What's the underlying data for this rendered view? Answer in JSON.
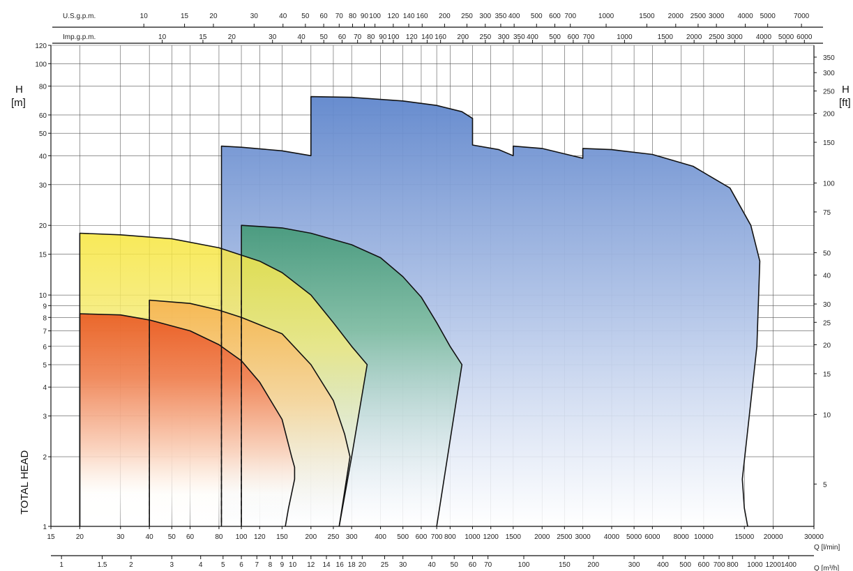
{
  "chart_data": {
    "type": "area",
    "title": "",
    "x_scale": "log",
    "y_scale": "log",
    "xlim": [
      15,
      30000
    ],
    "ylim": [
      1,
      120
    ],
    "grid": true,
    "labels": {
      "h_left_1": "H",
      "h_left_2": "[m]",
      "h_right_1": "H",
      "h_right_2": "[ft]",
      "total_head": "TOTAL HEAD",
      "q_lmin": "Q [l/min]",
      "q_m3h": "Q [m³/h]",
      "usgpm": "U.S.g.p.m.",
      "impgpm": "Imp.g.p.m."
    },
    "x_ticks_lmin": [
      "15",
      "20",
      "30",
      "40",
      "50",
      "60",
      "80",
      "100",
      "120",
      "150",
      "200",
      "250",
      "300",
      "400",
      "500",
      "600",
      "700",
      "800",
      "1000",
      "1200",
      "1500",
      "2000",
      "2500",
      "3000",
      "4000",
      "5000",
      "6000",
      "8000",
      "10000",
      "15000",
      "20000",
      "30000"
    ],
    "x_ticks_m3h": [
      "1",
      "1.5",
      "2",
      "3",
      "4",
      "5",
      "6",
      "7",
      "8",
      "9",
      "10",
      "12",
      "14",
      "16",
      "18",
      "20",
      "25",
      "30",
      "40",
      "50",
      "60",
      "70",
      "100",
      "150",
      "200",
      "300",
      "400",
      "500",
      "600",
      "700",
      "800",
      "1000",
      "1200",
      "1400"
    ],
    "x_ticks_usgpm": [
      "10",
      "15",
      "20",
      "30",
      "40",
      "50",
      "60",
      "70",
      "80",
      "90",
      "100",
      "120",
      "140",
      "160",
      "200",
      "250",
      "300",
      "350",
      "400",
      "500",
      "600",
      "700",
      "1000",
      "1500",
      "2000",
      "2500",
      "3000",
      "4000",
      "5000",
      "7000"
    ],
    "x_ticks_impgpm": [
      "10",
      "15",
      "20",
      "30",
      "40",
      "50",
      "60",
      "70",
      "80",
      "90",
      "100",
      "120",
      "140",
      "160",
      "200",
      "250",
      "300",
      "350",
      "400",
      "500",
      "600",
      "700",
      "1000",
      "1500",
      "2000",
      "2500",
      "3000",
      "4000",
      "5000",
      "6000"
    ],
    "y_ticks_m": [
      "1",
      "2",
      "3",
      "4",
      "5",
      "6",
      "7",
      "8",
      "9",
      "10",
      "15",
      "20",
      "30",
      "40",
      "50",
      "60",
      "80",
      "100",
      "120"
    ],
    "y_ticks_ft": [
      "5",
      "10",
      "15",
      "20",
      "25",
      "30",
      "40",
      "50",
      "75",
      "100",
      "150",
      "200",
      "250",
      "300",
      "350"
    ],
    "series": [
      {
        "color": "#3f6fc0",
        "points": [
          [
            82,
            1
          ],
          [
            82,
            44
          ],
          [
            100,
            43.5
          ],
          [
            150,
            42
          ],
          [
            200,
            40
          ],
          [
            200,
            72
          ],
          [
            300,
            71.5
          ],
          [
            500,
            69
          ],
          [
            700,
            66
          ],
          [
            900,
            62
          ],
          [
            1000,
            58
          ],
          [
            1000,
            44.5
          ],
          [
            1300,
            42.5
          ],
          [
            1500,
            40
          ],
          [
            1500,
            44
          ],
          [
            2000,
            43
          ],
          [
            3000,
            39
          ],
          [
            3000,
            43
          ],
          [
            4000,
            42.5
          ],
          [
            6000,
            40.5
          ],
          [
            9000,
            36
          ],
          [
            13000,
            29
          ],
          [
            16000,
            20
          ],
          [
            17500,
            14
          ],
          [
            17000,
            6
          ],
          [
            15500,
            2.6
          ],
          [
            14700,
            1.6
          ],
          [
            15000,
            1.2
          ],
          [
            15500,
            1
          ]
        ]
      },
      {
        "color": "#2f8a5a",
        "points": [
          [
            100,
            1
          ],
          [
            100,
            20
          ],
          [
            150,
            19.5
          ],
          [
            200,
            18.5
          ],
          [
            300,
            16.5
          ],
          [
            400,
            14.5
          ],
          [
            500,
            12
          ],
          [
            600,
            9.8
          ],
          [
            700,
            7.6
          ],
          [
            800,
            6
          ],
          [
            900,
            5
          ],
          [
            700,
            1
          ]
        ]
      },
      {
        "color": "#f2dc2c",
        "points": [
          [
            20,
            1
          ],
          [
            20,
            18.5
          ],
          [
            30,
            18.2
          ],
          [
            50,
            17.5
          ],
          [
            80,
            16
          ],
          [
            120,
            14
          ],
          [
            150,
            12.5
          ],
          [
            200,
            10
          ],
          [
            250,
            7.6
          ],
          [
            300,
            6
          ],
          [
            350,
            5
          ],
          [
            300,
            2
          ],
          [
            265,
            1
          ]
        ]
      },
      {
        "color": "#f2a030",
        "points": [
          [
            40,
            1
          ],
          [
            40,
            9.5
          ],
          [
            60,
            9.2
          ],
          [
            80,
            8.6
          ],
          [
            100,
            8
          ],
          [
            150,
            6.8
          ],
          [
            200,
            5
          ],
          [
            250,
            3.5
          ],
          [
            280,
            2.5
          ],
          [
            295,
            2
          ],
          [
            265,
            1
          ]
        ]
      },
      {
        "color": "#e24a1c",
        "points": [
          [
            20,
            1
          ],
          [
            20,
            8.3
          ],
          [
            30,
            8.2
          ],
          [
            40,
            7.8
          ],
          [
            60,
            7
          ],
          [
            80,
            6.1
          ],
          [
            100,
            5.2
          ],
          [
            120,
            4.2
          ],
          [
            150,
            2.9
          ],
          [
            165,
            2
          ],
          [
            170,
            1.8
          ],
          [
            170,
            1.6
          ],
          [
            160,
            1.2
          ],
          [
            155,
            1
          ]
        ]
      }
    ],
    "dashed_lines_x": [
      40,
      82,
      100
    ]
  }
}
